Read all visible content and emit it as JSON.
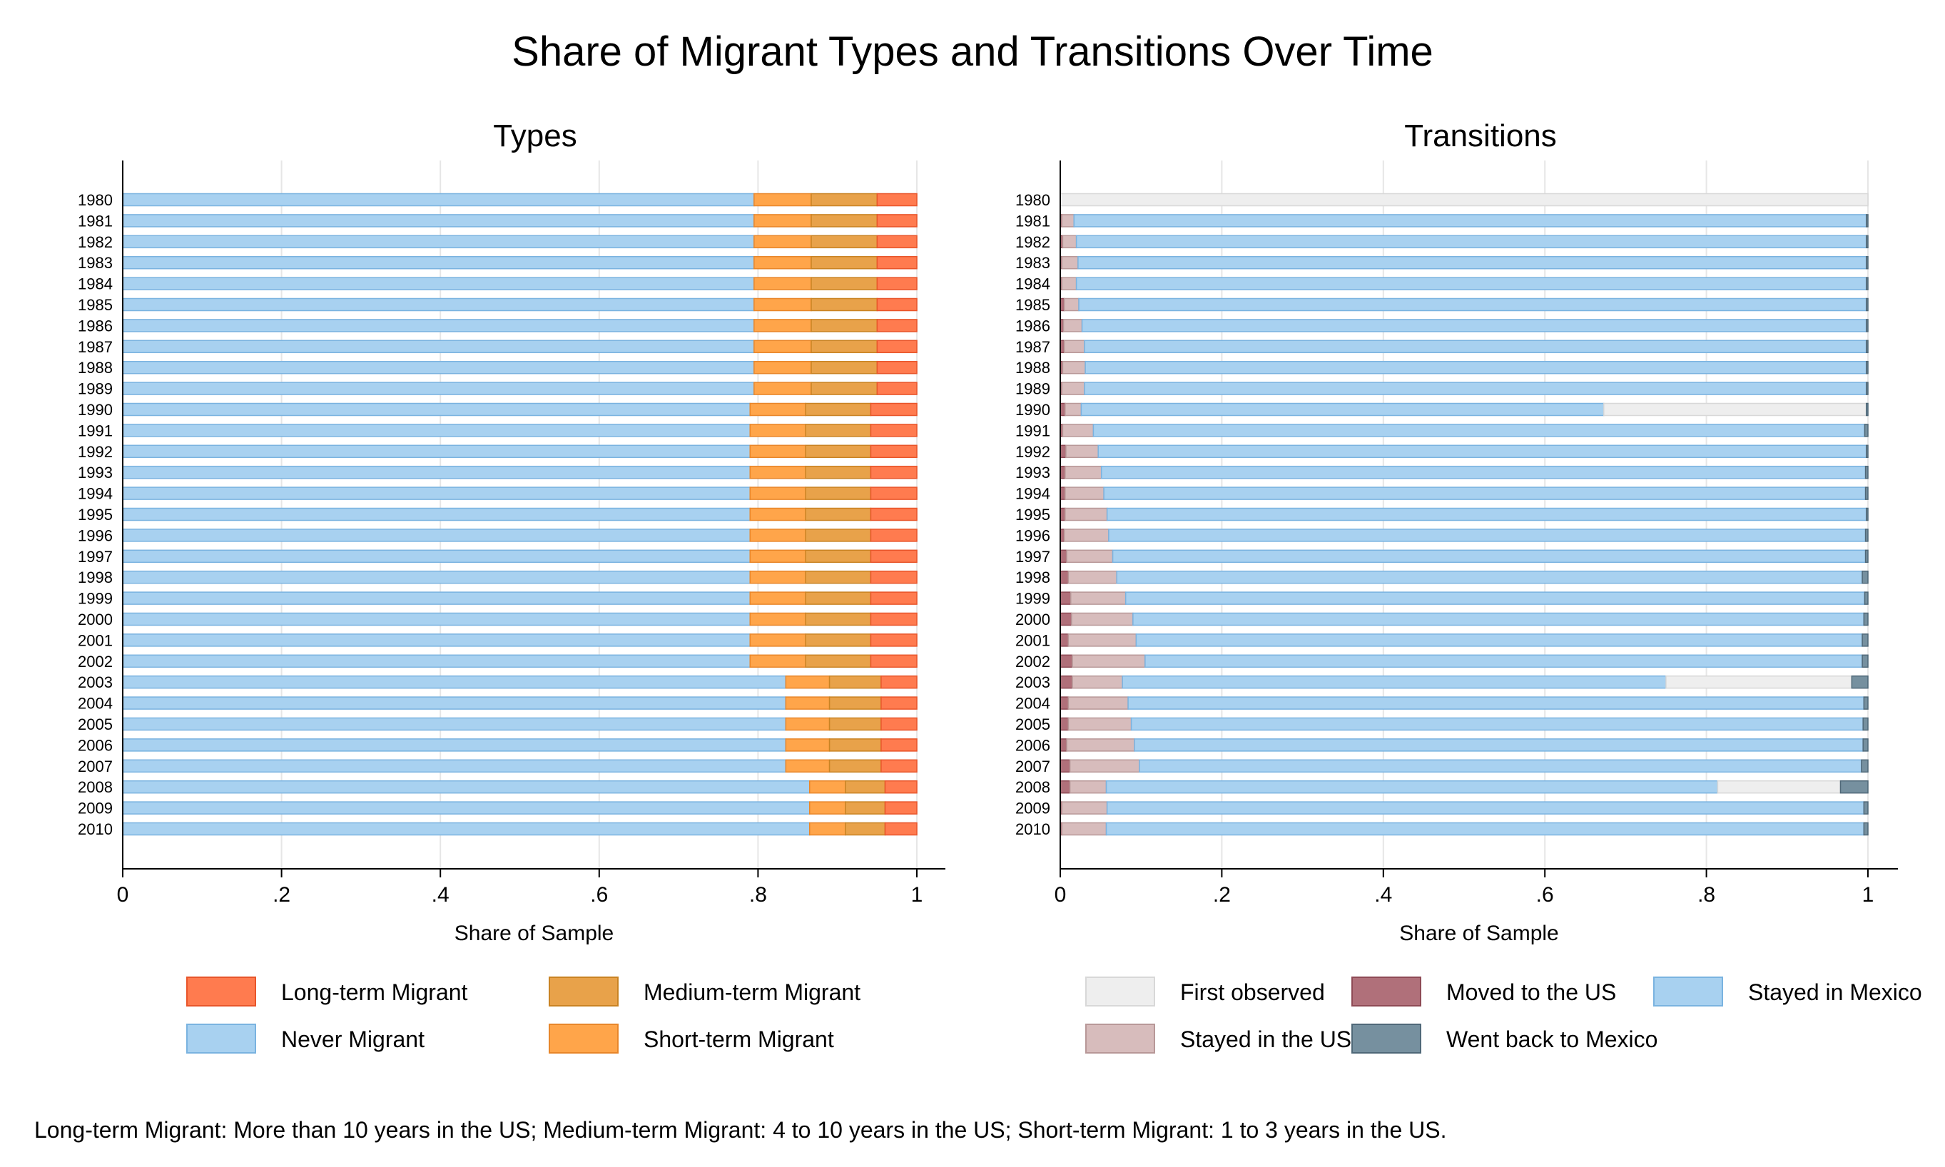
{
  "title": "Share of Migrant Types and Transitions Over Time",
  "note": "Long-term Migrant: More than 10 years in the US; Medium-term Migrant: 4 to 10 years in the US; Short-term Migrant: 1 to 3 years in the US.",
  "colors": {
    "never": "#a8d1f0",
    "short": "#ffa54a",
    "medium": "#e8a24a",
    "long": "#ff7b4f",
    "first": "#eeeeee",
    "moved": "#b0707a",
    "stayed_us": "#d7bcbc",
    "stayed_mx": "#a8d1f0",
    "went_back": "#76909f"
  },
  "chart_data": [
    {
      "type": "bar",
      "orientation": "horizontal",
      "stacked": true,
      "title": "Types",
      "xlabel": "Share of Sample",
      "ylabel": "",
      "xlim": [
        0,
        1
      ],
      "xticks": [
        "0",
        ".2",
        ".4",
        ".6",
        ".8",
        "1"
      ],
      "grid": true,
      "legend_position": "bottom",
      "categories": [
        "1980",
        "1981",
        "1982",
        "1983",
        "1984",
        "1985",
        "1986",
        "1987",
        "1988",
        "1989",
        "1990",
        "1991",
        "1992",
        "1993",
        "1994",
        "1995",
        "1996",
        "1997",
        "1998",
        "1999",
        "2000",
        "2001",
        "2002",
        "2003",
        "2004",
        "2005",
        "2006",
        "2007",
        "2008",
        "2009",
        "2010"
      ],
      "legend": [
        {
          "label": "Long-term Migrant",
          "key": "long"
        },
        {
          "label": "Medium-term Migrant",
          "key": "medium"
        },
        {
          "label": "Never Migrant",
          "key": "never"
        },
        {
          "label": "Short-term Migrant",
          "key": "short"
        }
      ],
      "series": [
        {
          "name": "Never Migrant",
          "key": "never",
          "values": [
            0.795,
            0.795,
            0.795,
            0.795,
            0.795,
            0.795,
            0.795,
            0.795,
            0.795,
            0.795,
            0.79,
            0.79,
            0.79,
            0.79,
            0.79,
            0.79,
            0.79,
            0.79,
            0.79,
            0.79,
            0.79,
            0.79,
            0.79,
            0.835,
            0.835,
            0.835,
            0.835,
            0.835,
            0.865,
            0.865,
            0.865
          ]
        },
        {
          "name": "Short-term Migrant",
          "key": "short",
          "values": [
            0.072,
            0.072,
            0.072,
            0.072,
            0.072,
            0.072,
            0.072,
            0.072,
            0.072,
            0.072,
            0.07,
            0.07,
            0.07,
            0.07,
            0.07,
            0.07,
            0.07,
            0.07,
            0.07,
            0.07,
            0.07,
            0.07,
            0.07,
            0.055,
            0.055,
            0.055,
            0.055,
            0.055,
            0.045,
            0.045,
            0.045
          ]
        },
        {
          "name": "Medium-term Migrant",
          "key": "medium",
          "values": [
            0.083,
            0.083,
            0.083,
            0.083,
            0.083,
            0.083,
            0.083,
            0.083,
            0.083,
            0.083,
            0.082,
            0.082,
            0.082,
            0.082,
            0.082,
            0.082,
            0.082,
            0.082,
            0.082,
            0.082,
            0.082,
            0.082,
            0.082,
            0.065,
            0.065,
            0.065,
            0.065,
            0.065,
            0.05,
            0.05,
            0.05
          ]
        },
        {
          "name": "Long-term Migrant",
          "key": "long",
          "values": [
            0.05,
            0.05,
            0.05,
            0.05,
            0.05,
            0.05,
            0.05,
            0.05,
            0.05,
            0.05,
            0.058,
            0.058,
            0.058,
            0.058,
            0.058,
            0.058,
            0.058,
            0.058,
            0.058,
            0.058,
            0.058,
            0.058,
            0.058,
            0.045,
            0.045,
            0.045,
            0.045,
            0.045,
            0.04,
            0.04,
            0.04
          ]
        }
      ]
    },
    {
      "type": "bar",
      "orientation": "horizontal",
      "stacked": true,
      "title": "Transitions",
      "xlabel": "Share of Sample",
      "ylabel": "",
      "xlim": [
        0,
        1
      ],
      "xticks": [
        "0",
        ".2",
        ".4",
        ".6",
        ".8",
        "1"
      ],
      "grid": true,
      "legend_position": "bottom",
      "categories": [
        "1980",
        "1981",
        "1982",
        "1983",
        "1984",
        "1985",
        "1986",
        "1987",
        "1988",
        "1989",
        "1990",
        "1991",
        "1992",
        "1993",
        "1994",
        "1995",
        "1996",
        "1997",
        "1998",
        "1999",
        "2000",
        "2001",
        "2002",
        "2003",
        "2004",
        "2005",
        "2006",
        "2007",
        "2008",
        "2009",
        "2010"
      ],
      "legend": [
        {
          "label": "First observed",
          "key": "first"
        },
        {
          "label": "Moved to the US",
          "key": "moved"
        },
        {
          "label": "Stayed in Mexico",
          "key": "stayed_mx"
        },
        {
          "label": "Stayed in the US",
          "key": "stayed_us"
        },
        {
          "label": "Went back to Mexico",
          "key": "went_back"
        }
      ],
      "series": [
        {
          "name": "Moved to the US",
          "key": "moved",
          "values": [
            0,
            0.002,
            0.003,
            0.002,
            0.002,
            0.005,
            0.004,
            0.005,
            0.003,
            0.002,
            0.006,
            0.003,
            0.007,
            0.006,
            0.006,
            0.006,
            0.005,
            0.008,
            0.01,
            0.013,
            0.014,
            0.01,
            0.015,
            0.015,
            0.01,
            0.01,
            0.008,
            0.012,
            0.012,
            0.002,
            0.002
          ]
        },
        {
          "name": "Stayed in the US",
          "key": "stayed_us",
          "values": [
            0,
            0.015,
            0.017,
            0.02,
            0.018,
            0.018,
            0.023,
            0.025,
            0.028,
            0.028,
            0.02,
            0.038,
            0.04,
            0.045,
            0.048,
            0.052,
            0.055,
            0.057,
            0.06,
            0.068,
            0.076,
            0.084,
            0.09,
            0.062,
            0.074,
            0.078,
            0.084,
            0.086,
            0.045,
            0.056,
            0.055
          ]
        },
        {
          "name": "Stayed in Mexico",
          "key": "stayed_mx",
          "values": [
            0,
            0.981,
            0.978,
            0.976,
            0.978,
            0.975,
            0.971,
            0.968,
            0.967,
            0.968,
            0.647,
            0.955,
            0.951,
            0.946,
            0.943,
            0.94,
            0.937,
            0.932,
            0.923,
            0.915,
            0.905,
            0.899,
            0.888,
            0.673,
            0.911,
            0.906,
            0.902,
            0.894,
            0.757,
            0.937,
            0.938
          ]
        },
        {
          "name": "First observed",
          "key": "first",
          "values": [
            1,
            0,
            0,
            0,
            0,
            0,
            0,
            0,
            0,
            0,
            0.325,
            0,
            0,
            0,
            0,
            0,
            0,
            0,
            0,
            0,
            0,
            0,
            0,
            0.23,
            0,
            0,
            0,
            0,
            0.152,
            0,
            0
          ]
        },
        {
          "name": "Went back to Mexico",
          "key": "went_back",
          "values": [
            0,
            0.002,
            0.002,
            0.002,
            0.002,
            0.002,
            0.002,
            0.002,
            0.002,
            0.002,
            0.002,
            0.004,
            0.002,
            0.003,
            0.003,
            0.002,
            0.003,
            0.003,
            0.007,
            0.004,
            0.005,
            0.007,
            0.007,
            0.02,
            0.005,
            0.006,
            0.006,
            0.008,
            0.034,
            0.005,
            0.005
          ]
        }
      ]
    }
  ]
}
